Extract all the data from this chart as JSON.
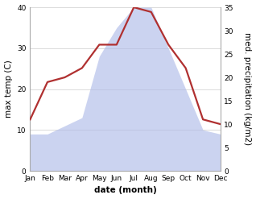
{
  "months": [
    "Jan",
    "Feb",
    "Mar",
    "Apr",
    "May",
    "Jun",
    "Jul",
    "Aug",
    "Sep",
    "Oct",
    "Nov",
    "Dec"
  ],
  "x": [
    1,
    2,
    3,
    4,
    5,
    6,
    7,
    8,
    9,
    10,
    11,
    12
  ],
  "precipitation": [
    9,
    9,
    11,
    13,
    28,
    35,
    40,
    40,
    30,
    20,
    10,
    9
  ],
  "temperature": [
    11,
    19,
    20,
    22,
    27,
    27,
    35,
    34,
    27,
    22,
    11,
    10
  ],
  "temp_ylim": [
    0,
    35
  ],
  "precip_ylim": [
    0,
    40
  ],
  "temp_yticks": [
    0,
    5,
    10,
    15,
    20,
    25,
    30,
    35
  ],
  "precip_yticks": [
    0,
    10,
    20,
    30,
    40
  ],
  "fill_color": "#b0bce8",
  "fill_alpha": 0.65,
  "line_color": "#b03030",
  "line_width": 1.6,
  "xlabel": "date (month)",
  "ylabel_left": "max temp (C)",
  "ylabel_right": "med. precipitation (kg/m2)",
  "bg_color": "#ffffff",
  "grid_color": "#cccccc",
  "label_fontsize": 7.5,
  "tick_fontsize": 6.5
}
